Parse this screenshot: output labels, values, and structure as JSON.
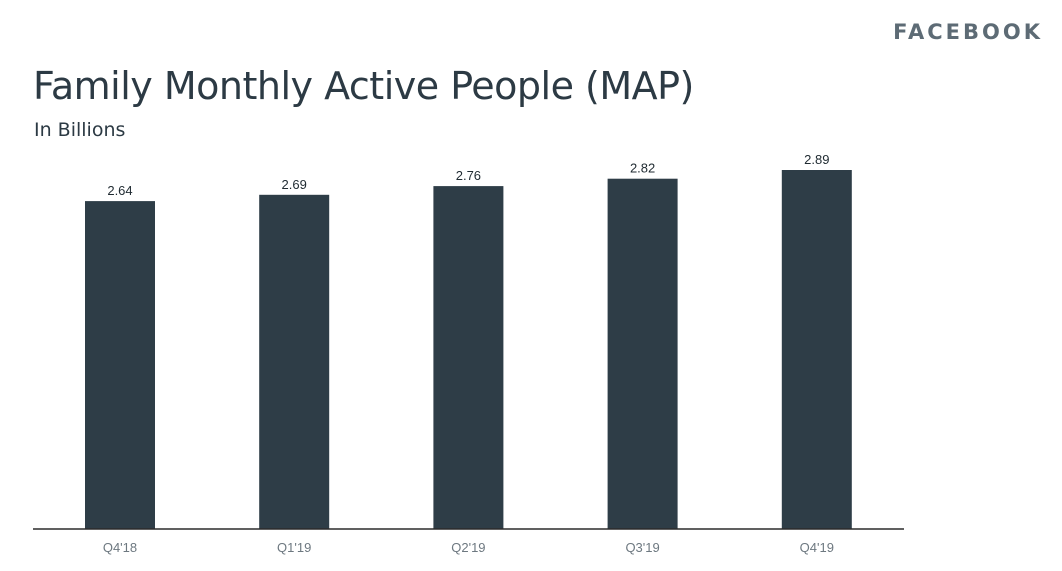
{
  "brand": {
    "logo_text": "FACEBOOK"
  },
  "chart_data": {
    "type": "bar",
    "title": "Family Monthly Active People (MAP)",
    "subtitle": "In Billions",
    "categories": [
      "Q4'18",
      "Q1'19",
      "Q2'19",
      "Q3'19",
      "Q4'19"
    ],
    "values": [
      2.64,
      2.69,
      2.76,
      2.82,
      2.89
    ],
    "value_labels": [
      "2.64",
      "2.69",
      "2.76",
      "2.82",
      "2.89"
    ],
    "xlabel": "",
    "ylabel": "",
    "ylim": [
      0,
      3.0
    ],
    "grid": false,
    "legend": "none",
    "colors": {
      "bar": "#2e3d47",
      "text": "#2c3a44",
      "tick": "#6d7880",
      "brand": "#5d6b75"
    }
  }
}
